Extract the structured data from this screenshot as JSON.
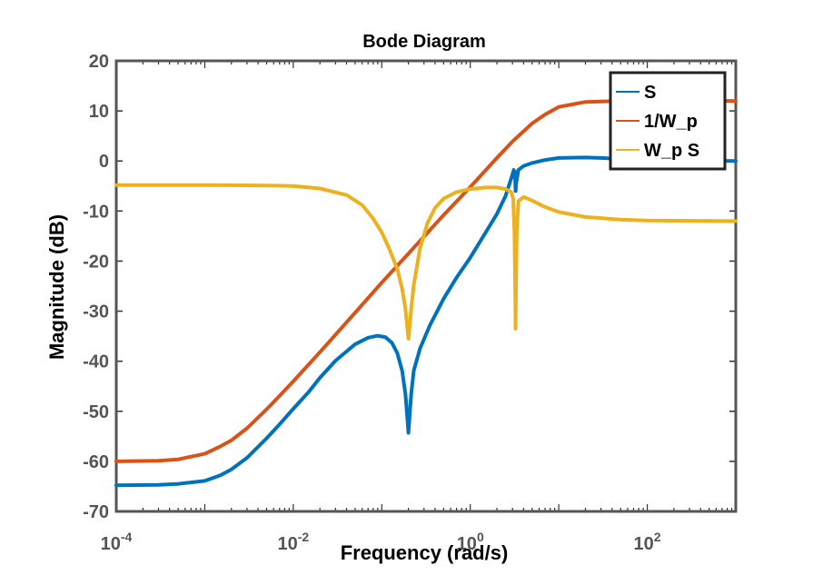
{
  "chart_data": {
    "type": "line",
    "title": "Bode Diagram",
    "xlabel": "Frequency  (rad/s)",
    "ylabel": "Magnitude (dB)",
    "x_scale": "log",
    "xlim": [
      0.0001,
      1000
    ],
    "ylim": [
      -70,
      20
    ],
    "x_ticks": [
      {
        "value": 0.0001,
        "base": "10",
        "exp": "-4"
      },
      {
        "value": 0.01,
        "base": "10",
        "exp": "-2"
      },
      {
        "value": 1,
        "base": "10",
        "exp": "0"
      },
      {
        "value": 100,
        "base": "10",
        "exp": "2"
      }
    ],
    "y_ticks": [
      20,
      10,
      0,
      -10,
      -20,
      -30,
      -40,
      -50,
      -60,
      -70
    ],
    "grid": false,
    "legend_position": "top-right",
    "series": [
      {
        "name": "S",
        "color": "#0072BD",
        "points": [
          [
            0.0001,
            -64.8
          ],
          [
            0.0003,
            -64.7
          ],
          [
            0.0005,
            -64.5
          ],
          [
            0.001,
            -63.9
          ],
          [
            0.0015,
            -62.8
          ],
          [
            0.002,
            -61.6
          ],
          [
            0.003,
            -59.3
          ],
          [
            0.005,
            -55.4
          ],
          [
            0.007,
            -52.6
          ],
          [
            0.01,
            -49.5
          ],
          [
            0.015,
            -46.1
          ],
          [
            0.02,
            -43.3
          ],
          [
            0.03,
            -39.9
          ],
          [
            0.05,
            -36.6
          ],
          [
            0.07,
            -35.3
          ],
          [
            0.09,
            -34.9
          ],
          [
            0.11,
            -35.2
          ],
          [
            0.13,
            -36.3
          ],
          [
            0.15,
            -38.4
          ],
          [
            0.17,
            -41.9
          ],
          [
            0.185,
            -46.5
          ],
          [
            0.195,
            -51.5
          ],
          [
            0.2,
            -54.3
          ],
          [
            0.205,
            -51.5
          ],
          [
            0.215,
            -46.5
          ],
          [
            0.23,
            -41.9
          ],
          [
            0.27,
            -37.5
          ],
          [
            0.35,
            -32.8
          ],
          [
            0.5,
            -27.5
          ],
          [
            0.7,
            -23.3
          ],
          [
            1.0,
            -19.3
          ],
          [
            1.5,
            -14.2
          ],
          [
            2.0,
            -10.6
          ],
          [
            2.5,
            -7.0
          ],
          [
            2.9,
            -3.5
          ],
          [
            3.1,
            -1.8
          ],
          [
            3.2,
            -2.2
          ],
          [
            3.25,
            -6.0
          ],
          [
            3.3,
            -4.5
          ],
          [
            3.5,
            -1.8
          ],
          [
            4.0,
            -1.0
          ],
          [
            5.0,
            -0.4
          ],
          [
            7.0,
            0.2
          ],
          [
            10.0,
            0.6
          ],
          [
            20.0,
            0.7
          ],
          [
            30.0,
            0.6
          ],
          [
            50.0,
            0.4
          ],
          [
            100.0,
            0.2
          ],
          [
            300.0,
            0.1
          ],
          [
            1000.0,
            0.0
          ]
        ]
      },
      {
        "name": "1/W_p",
        "color": "#D95319",
        "points": [
          [
            0.0001,
            -60.0
          ],
          [
            0.0003,
            -59.9
          ],
          [
            0.0005,
            -59.6
          ],
          [
            0.001,
            -58.5
          ],
          [
            0.0015,
            -57.0
          ],
          [
            0.002,
            -55.8
          ],
          [
            0.003,
            -53.4
          ],
          [
            0.005,
            -49.6
          ],
          [
            0.007,
            -46.9
          ],
          [
            0.01,
            -44.0
          ],
          [
            0.02,
            -38.2
          ],
          [
            0.05,
            -30.3
          ],
          [
            0.1,
            -24.3
          ],
          [
            0.2,
            -18.5
          ],
          [
            0.5,
            -10.8
          ],
          [
            1.0,
            -5.2
          ],
          [
            2.0,
            0.6
          ],
          [
            3.0,
            3.9
          ],
          [
            5.0,
            7.5
          ],
          [
            7.0,
            9.3
          ],
          [
            10.0,
            10.8
          ],
          [
            20.0,
            11.8
          ],
          [
            50.0,
            12.0
          ],
          [
            100.0,
            12.0
          ],
          [
            1000.0,
            12.0
          ]
        ]
      },
      {
        "name": "W_p S",
        "color": "#EDB120",
        "points": [
          [
            0.0001,
            -4.8
          ],
          [
            0.001,
            -4.8
          ],
          [
            0.005,
            -4.9
          ],
          [
            0.01,
            -5.0
          ],
          [
            0.02,
            -5.5
          ],
          [
            0.04,
            -6.8
          ],
          [
            0.06,
            -8.8
          ],
          [
            0.08,
            -11.5
          ],
          [
            0.1,
            -14.3
          ],
          [
            0.12,
            -17.3
          ],
          [
            0.15,
            -21.6
          ],
          [
            0.17,
            -25.5
          ],
          [
            0.185,
            -29.5
          ],
          [
            0.195,
            -33.5
          ],
          [
            0.2,
            -35.5
          ],
          [
            0.205,
            -33.5
          ],
          [
            0.215,
            -29.5
          ],
          [
            0.23,
            -24.8
          ],
          [
            0.27,
            -17.5
          ],
          [
            0.33,
            -12.3
          ],
          [
            0.4,
            -9.4
          ],
          [
            0.5,
            -7.5
          ],
          [
            0.7,
            -6.2
          ],
          [
            1.0,
            -5.6
          ],
          [
            1.5,
            -5.3
          ],
          [
            2.0,
            -5.3
          ],
          [
            2.5,
            -5.6
          ],
          [
            2.9,
            -6.2
          ],
          [
            3.05,
            -7.5
          ],
          [
            3.15,
            -14.0
          ],
          [
            3.22,
            -26.0
          ],
          [
            3.25,
            -33.5
          ],
          [
            3.28,
            -26.0
          ],
          [
            3.35,
            -14.0
          ],
          [
            3.5,
            -8.0
          ],
          [
            4.0,
            -7.2
          ],
          [
            5.0,
            -7.9
          ],
          [
            7.0,
            -9.2
          ],
          [
            10.0,
            -10.2
          ],
          [
            20.0,
            -11.2
          ],
          [
            50.0,
            -11.7
          ],
          [
            100.0,
            -11.9
          ],
          [
            1000.0,
            -12.0
          ]
        ]
      }
    ]
  }
}
